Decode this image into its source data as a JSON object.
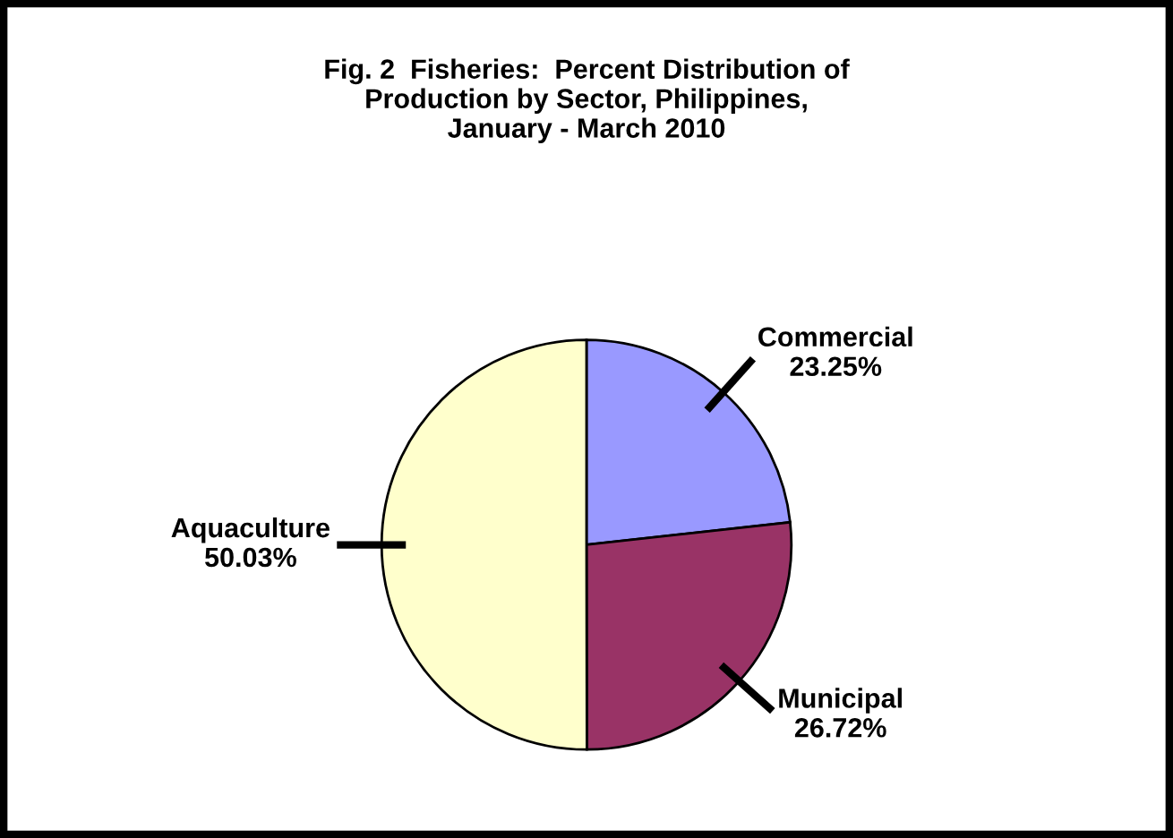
{
  "chart_data": {
    "type": "pie",
    "title": "Fig. 2  Fisheries:  Percent Distribution of\nProduction by Sector, Philippines,\nJanuary - March 2010",
    "categories": [
      "Commercial",
      "Municipal",
      "Aquaculture"
    ],
    "values": [
      23.25,
      26.72,
      50.03
    ],
    "value_labels": [
      "23.25%",
      "26.72%",
      "50.03%"
    ],
    "colors": [
      "#9999ff",
      "#993366",
      "#ffffcc"
    ],
    "legend": false
  }
}
